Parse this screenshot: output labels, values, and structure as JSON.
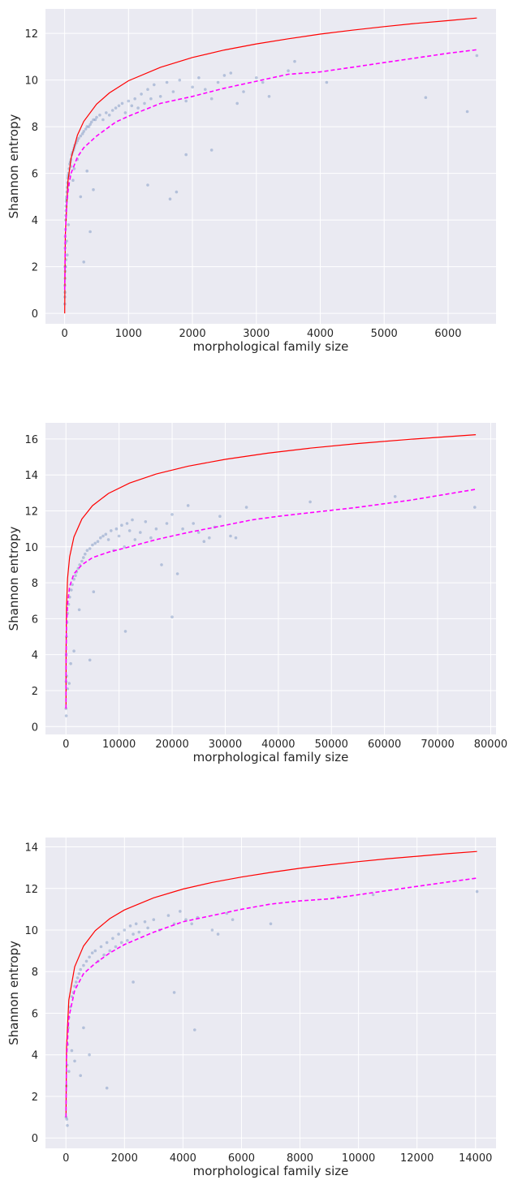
{
  "chart_data": [
    {
      "type": "scatter",
      "xlabel": "morphological family size",
      "ylabel": "Shannon entropy",
      "xlim": [
        -300,
        6750
      ],
      "ylim": [
        -0.45,
        13.05
      ],
      "xticks": [
        0,
        1000,
        2000,
        3000,
        4000,
        5000,
        6000
      ],
      "yticks": [
        0,
        2,
        4,
        6,
        8,
        10,
        12
      ],
      "grid": true,
      "x_max": 6450,
      "colors": {
        "background": "#eaeaf2",
        "grid": "#ffffff",
        "points": "#4c72b0",
        "upper_curve": "#ff0000",
        "fit_curve": "#ff00ff"
      },
      "series": [
        {
          "type": "line",
          "style": "solid",
          "x": [
            1,
            10,
            50,
            100,
            200,
            300,
            500,
            700,
            1000,
            1500,
            2000,
            2500,
            3000,
            3500,
            4000,
            4500,
            5000,
            5500,
            6000,
            6450
          ],
          "y": [
            0,
            3.32,
            5.64,
            6.64,
            7.64,
            8.23,
            8.97,
            9.45,
            9.97,
            10.55,
            10.97,
            11.29,
            11.55,
            11.77,
            11.97,
            12.14,
            12.29,
            12.43,
            12.55,
            12.66
          ]
        },
        {
          "type": "line",
          "style": "dashed",
          "x": [
            1,
            10,
            30,
            60,
            100,
            200,
            300,
            500,
            800,
            1000,
            1500,
            2000,
            2500,
            3000,
            3500,
            4000,
            4500,
            5000,
            5500,
            6000,
            6450
          ],
          "y": [
            1.0,
            3.3,
            4.6,
            5.4,
            6.0,
            6.7,
            7.1,
            7.6,
            8.2,
            8.45,
            9.0,
            9.3,
            9.65,
            9.95,
            10.25,
            10.35,
            10.55,
            10.75,
            10.95,
            11.15,
            11.3
          ]
        },
        {
          "type": "scatter",
          "x": [
            3,
            5,
            8,
            10,
            12,
            15,
            18,
            20,
            22,
            25,
            28,
            30,
            35,
            40,
            45,
            50,
            55,
            60,
            70,
            80,
            90,
            100,
            110,
            120,
            140,
            150,
            160,
            180,
            200,
            220,
            250,
            280,
            300,
            330,
            350,
            380,
            400,
            420,
            450,
            480,
            500,
            550,
            600,
            650,
            700,
            750,
            800,
            850,
            900,
            950,
            1000,
            1050,
            1100,
            1150,
            1200,
            1250,
            1300,
            1350,
            1400,
            1500,
            1600,
            1700,
            1800,
            1900,
            2000,
            2100,
            2200,
            2300,
            2400,
            2500,
            2600,
            2700,
            2800,
            3000,
            3100,
            3200,
            3500,
            3600,
            4100,
            5650,
            6300,
            6450,
            60,
            80,
            100,
            130,
            150,
            200,
            250,
            300,
            350,
            400,
            450,
            1300,
            1650,
            1750,
            1900,
            2300,
            30,
            40,
            60,
            15,
            10,
            20,
            2,
            4,
            6,
            8,
            12
          ],
          "y": [
            1.2,
            2.0,
            2.8,
            3.3,
            3.6,
            4.0,
            4.2,
            4.4,
            4.6,
            4.8,
            4.9,
            5.0,
            5.2,
            5.4,
            5.6,
            5.8,
            5.9,
            6.0,
            6.2,
            6.4,
            6.5,
            6.6,
            6.8,
            6.9,
            7.0,
            7.1,
            7.2,
            7.3,
            7.4,
            7.5,
            7.6,
            7.7,
            7.8,
            7.9,
            8.0,
            8.0,
            8.1,
            8.2,
            8.3,
            8.3,
            8.4,
            8.5,
            8.3,
            8.6,
            8.5,
            8.7,
            8.8,
            8.9,
            9.0,
            8.6,
            9.1,
            8.9,
            9.2,
            8.8,
            9.4,
            9.0,
            9.6,
            9.2,
            9.8,
            9.3,
            9.9,
            9.5,
            10.0,
            9.1,
            9.7,
            10.1,
            9.6,
            9.2,
            9.9,
            10.2,
            10.3,
            9.0,
            9.5,
            10.1,
            9.9,
            9.3,
            10.4,
            10.8,
            9.9,
            9.25,
            8.65,
            11.05,
            5.5,
            5.9,
            6.3,
            5.7,
            6.2,
            6.6,
            5.0,
            2.2,
            6.1,
            3.5,
            5.3,
            5.5,
            4.9,
            5.2,
            6.8,
            7.0,
            3.1,
            2.5,
            3.8,
            2.0,
            1.8,
            2.3,
            0.4,
            0.7,
            0.9,
            1.5,
            3.0
          ]
        }
      ]
    },
    {
      "type": "scatter",
      "xlabel": "morphological family size",
      "ylabel": "Shannon entropy",
      "xlim": [
        -3860,
        81000
      ],
      "ylim": [
        -0.44,
        16.9
      ],
      "xticks": [
        0,
        10000,
        20000,
        30000,
        40000,
        50000,
        60000,
        70000,
        80000
      ],
      "yticks": [
        0,
        2,
        4,
        6,
        8,
        10,
        12,
        14,
        16
      ],
      "grid": true,
      "x_max": 77200,
      "colors": {
        "background": "#eaeaf2",
        "grid": "#ffffff",
        "points": "#4c72b0",
        "upper_curve": "#ff0000",
        "fit_curve": "#ff00ff"
      },
      "series": [
        {
          "type": "line",
          "style": "solid",
          "x": [
            2,
            20,
            100,
            300,
            700,
            1500,
            3000,
            5000,
            8000,
            12000,
            17000,
            23000,
            30000,
            38000,
            46000,
            55000,
            65000,
            77200
          ],
          "y": [
            1.0,
            4.32,
            6.64,
            8.23,
            9.45,
            10.55,
            11.55,
            12.29,
            12.97,
            13.55,
            14.05,
            14.49,
            14.87,
            15.21,
            15.49,
            15.75,
            15.99,
            16.24
          ]
        },
        {
          "type": "line",
          "style": "dashed",
          "x": [
            2,
            20,
            100,
            300,
            700,
            1500,
            3000,
            5000,
            8000,
            12000,
            17000,
            23000,
            30000,
            35000,
            40000,
            46000,
            55000,
            65000,
            77200
          ],
          "y": [
            1.0,
            3.5,
            5.5,
            6.8,
            7.8,
            8.5,
            9.0,
            9.4,
            9.7,
            10.0,
            10.4,
            10.8,
            11.2,
            11.5,
            11.7,
            11.9,
            12.2,
            12.6,
            13.2
          ]
        },
        {
          "type": "scatter",
          "x": [
            5,
            20,
            50,
            100,
            200,
            300,
            500,
            700,
            1000,
            1200,
            1500,
            1800,
            2000,
            2300,
            2600,
            3000,
            3300,
            3600,
            4000,
            4500,
            5000,
            5500,
            6000,
            6500,
            7000,
            7500,
            8000,
            8500,
            9000,
            9500,
            10000,
            10500,
            11000,
            11500,
            12000,
            12500,
            13000,
            14000,
            15000,
            16000,
            17000,
            18000,
            19000,
            20000,
            21000,
            22000,
            23000,
            24000,
            25000,
            26000,
            27000,
            28000,
            29000,
            31000,
            32000,
            34000,
            46000,
            62000,
            77000,
            11200,
            5200,
            20000,
            4500,
            600,
            900,
            300,
            1500,
            2500,
            50,
            150
          ],
          "y": [
            1.0,
            2.5,
            4.0,
            5.0,
            5.8,
            6.3,
            6.8,
            7.2,
            7.6,
            7.9,
            8.2,
            8.4,
            8.6,
            8.8,
            9.0,
            9.2,
            9.4,
            9.6,
            9.8,
            9.9,
            10.1,
            10.2,
            10.3,
            10.5,
            10.6,
            10.7,
            10.4,
            10.9,
            9.8,
            11.0,
            10.6,
            11.2,
            10.0,
            11.3,
            10.9,
            11.5,
            10.4,
            10.8,
            11.4,
            10.5,
            11.0,
            9.0,
            11.3,
            11.8,
            8.5,
            11.0,
            12.3,
            11.3,
            10.8,
            10.3,
            10.5,
            11.1,
            11.7,
            10.6,
            10.5,
            12.2,
            12.5,
            12.8,
            12.2,
            5.3,
            7.5,
            6.1,
            3.7,
            2.4,
            3.5,
            2.1,
            4.2,
            6.5,
            0.6,
            2.8
          ]
        }
      ]
    },
    {
      "type": "scatter",
      "xlabel": "morphological family size",
      "ylabel": "Shannon entropy",
      "xlim": [
        -700,
        14700
      ],
      "ylim": [
        -0.5,
        14.45
      ],
      "xticks": [
        0,
        2000,
        4000,
        6000,
        8000,
        10000,
        12000,
        14000
      ],
      "yticks": [
        0,
        2,
        4,
        6,
        8,
        10,
        12,
        14
      ],
      "grid": true,
      "x_max": 14050,
      "colors": {
        "background": "#eaeaf2",
        "grid": "#ffffff",
        "points": "#4c72b0",
        "upper_curve": "#ff0000",
        "fit_curve": "#ff00ff"
      },
      "series": [
        {
          "type": "line",
          "style": "solid",
          "x": [
            2,
            20,
            100,
            300,
            600,
            1000,
            1500,
            2000,
            3000,
            4000,
            5000,
            6000,
            7000,
            8000,
            9000,
            10000,
            11000,
            12000,
            13000,
            14050
          ],
          "y": [
            1.0,
            4.32,
            6.64,
            8.23,
            9.23,
            9.97,
            10.55,
            10.97,
            11.55,
            11.97,
            12.29,
            12.55,
            12.77,
            12.97,
            13.14,
            13.29,
            13.43,
            13.55,
            13.67,
            13.78
          ]
        },
        {
          "type": "line",
          "style": "dashed",
          "x": [
            2,
            20,
            100,
            300,
            600,
            1000,
            1500,
            2000,
            3000,
            4000,
            5000,
            6000,
            7000,
            8000,
            9000,
            10000,
            11000,
            12000,
            13000,
            14050
          ],
          "y": [
            1.0,
            3.8,
            5.8,
            7.1,
            7.9,
            8.4,
            8.9,
            9.3,
            9.9,
            10.4,
            10.7,
            11.0,
            11.25,
            11.4,
            11.5,
            11.7,
            11.9,
            12.1,
            12.3,
            12.5
          ]
        },
        {
          "type": "scatter",
          "x": [
            5,
            20,
            40,
            60,
            80,
            100,
            150,
            200,
            250,
            300,
            350,
            400,
            450,
            500,
            600,
            700,
            800,
            900,
            1000,
            1100,
            1200,
            1300,
            1400,
            1500,
            1600,
            1700,
            1800,
            1900,
            2000,
            2100,
            2200,
            2300,
            2400,
            2500,
            2700,
            2800,
            3000,
            3200,
            3500,
            3700,
            3900,
            4100,
            4300,
            4500,
            5000,
            5200,
            5500,
            5700,
            7000,
            9300,
            10500,
            14050,
            3700,
            4400,
            2300,
            1400,
            600,
            300,
            200,
            100,
            500,
            800,
            50,
            30
          ],
          "y": [
            1.0,
            2.5,
            3.5,
            4.5,
            5.3,
            5.8,
            6.3,
            6.8,
            7.0,
            7.3,
            7.5,
            7.7,
            7.9,
            8.1,
            8.3,
            8.5,
            8.7,
            8.9,
            9.0,
            8.5,
            9.2,
            8.8,
            9.4,
            9.0,
            9.6,
            9.2,
            9.8,
            9.4,
            10.0,
            9.5,
            10.2,
            9.8,
            10.3,
            9.9,
            10.4,
            10.1,
            10.5,
            10.0,
            10.7,
            10.3,
            10.9,
            10.5,
            10.3,
            10.6,
            10.0,
            9.8,
            10.8,
            10.5,
            10.3,
            11.6,
            11.7,
            11.85,
            7.0,
            5.2,
            7.5,
            2.4,
            5.3,
            3.7,
            4.2,
            3.2,
            3.0,
            4.0,
            0.6,
            0.9
          ]
        }
      ]
    }
  ]
}
